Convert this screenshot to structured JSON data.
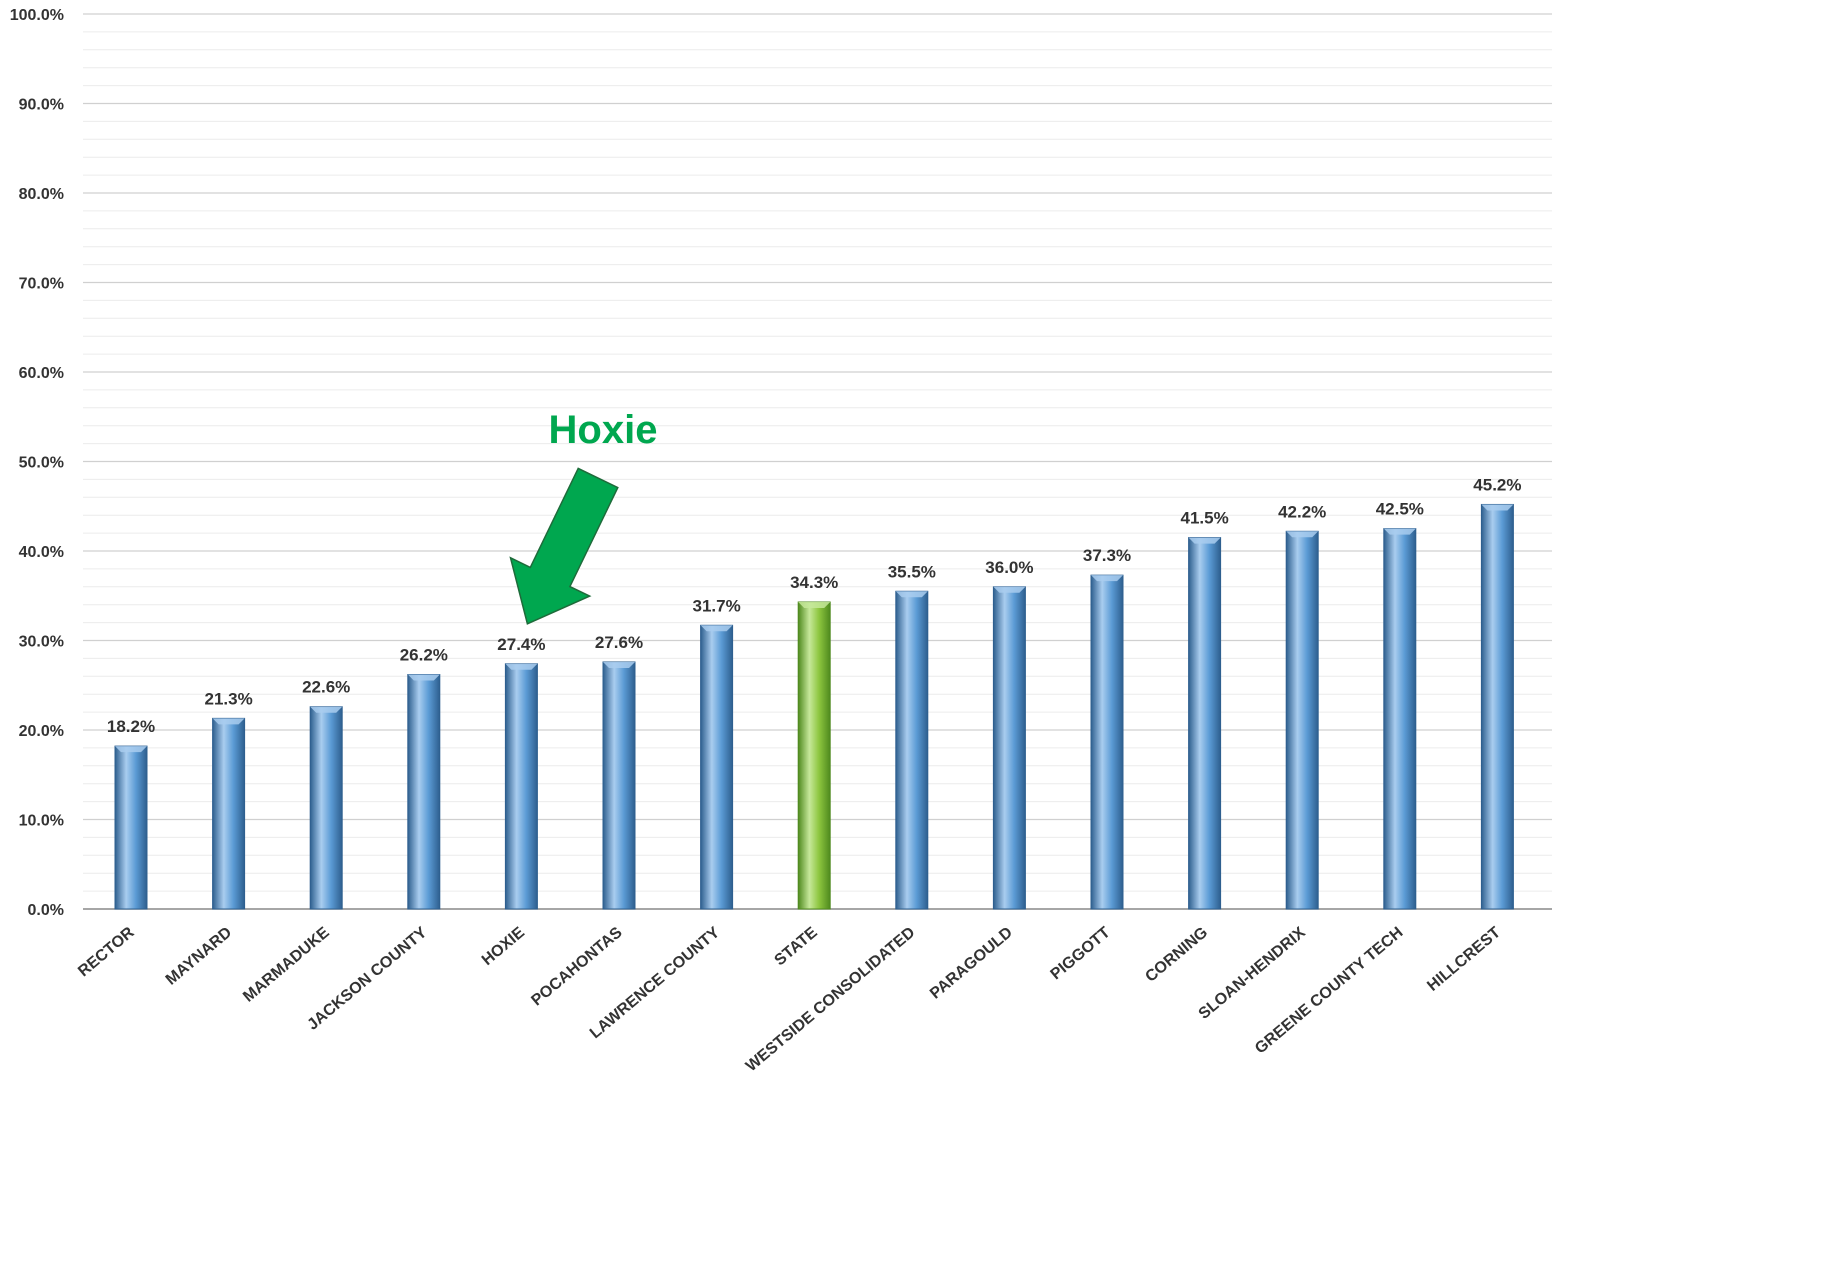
{
  "chart_data": {
    "type": "bar",
    "title": "",
    "xlabel": "",
    "ylabel": "",
    "categories": [
      "RECTOR",
      "MAYNARD",
      "MARMADUKE",
      "JACKSON COUNTY",
      "HOXIE",
      "POCAHONTAS",
      "LAWRENCE COUNTY",
      "STATE",
      "WESTSIDE CONSOLIDATED",
      "PARAGOULD",
      "PIGGOTT",
      "CORNING",
      "SLOAN-HENDRIX",
      "GREENE COUNTY TECH",
      "HILLCREST"
    ],
    "values": [
      18.2,
      21.3,
      22.6,
      26.2,
      27.4,
      27.6,
      31.7,
      34.3,
      35.5,
      36.0,
      37.3,
      41.5,
      42.2,
      42.5,
      45.2
    ],
    "data_labels": [
      "18.2%",
      "21.3%",
      "22.6%",
      "26.2%",
      "27.4%",
      "27.6%",
      "31.7%",
      "34.3%",
      "35.5%",
      "36.0%",
      "37.3%",
      "41.5%",
      "42.2%",
      "42.5%",
      "45.2%"
    ],
    "ylim": [
      0,
      100
    ],
    "y_ticks": [
      0,
      10,
      20,
      30,
      40,
      50,
      60,
      70,
      80,
      90,
      100
    ],
    "y_tick_labels": [
      "0.0%",
      "10.0%",
      "20.0%",
      "30.0%",
      "40.0%",
      "50.0%",
      "60.0%",
      "70.0%",
      "80.0%",
      "90.0%",
      "100.0%"
    ],
    "y_minor_step": 2,
    "grid": true,
    "legend": "none",
    "highlight_category": "STATE",
    "colors": {
      "bar": "#5b9bd5",
      "bar_dark": "#2e5f8f",
      "bar_light": "#a9cdef",
      "highlight": "#8dc63f",
      "highlight_dark": "#4f8a1e",
      "highlight_light": "#c6e89a",
      "major_grid": "#d0d0d0",
      "minor_grid": "#ececec",
      "axis": "#888888",
      "annotation": "#00a74f",
      "annotation_stroke": "#1e6b3a"
    },
    "annotation": {
      "text": "Hoxie",
      "target_category": "HOXIE",
      "color": "#00a74f"
    }
  }
}
